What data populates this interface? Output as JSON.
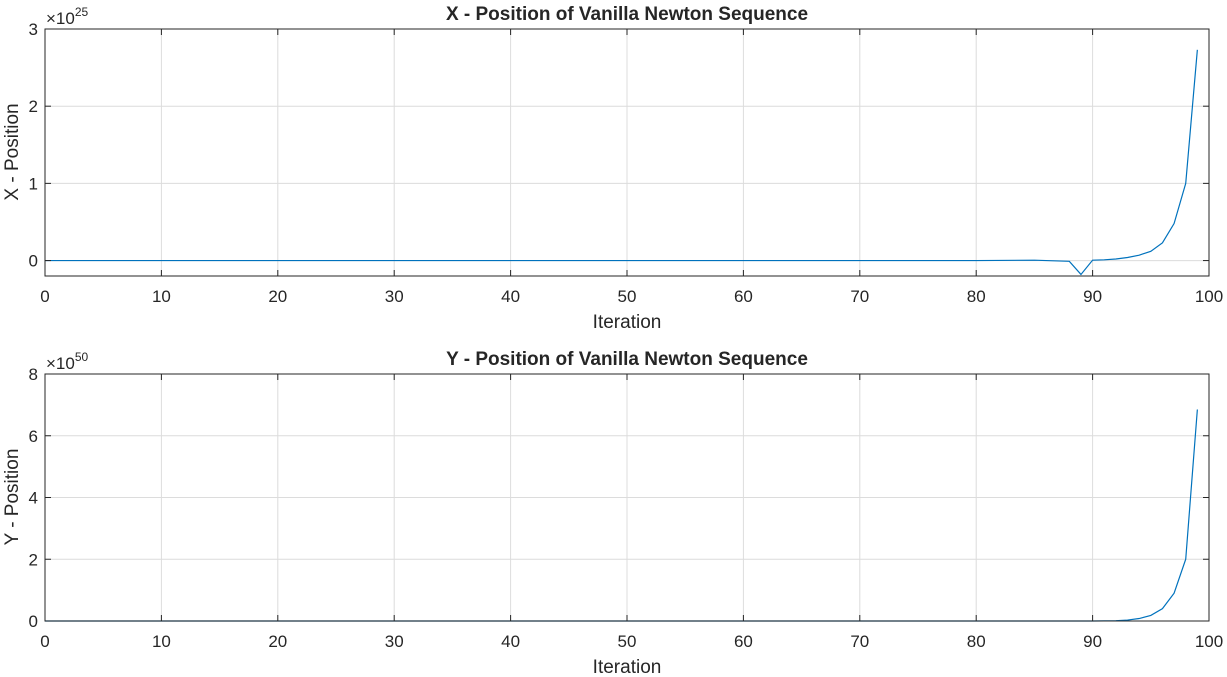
{
  "chart_data": [
    {
      "type": "line",
      "title": "X - Position of Vanilla Newton Sequence",
      "xlabel": "Iteration",
      "ylabel": "X - Position",
      "exponent_base": "×10",
      "exponent_power": "25",
      "xlim": [
        0,
        100
      ],
      "ylim": [
        -0.2,
        3
      ],
      "xticks": [
        0,
        10,
        20,
        30,
        40,
        50,
        60,
        70,
        80,
        90,
        100
      ],
      "yticks": [
        0,
        1,
        2,
        3
      ],
      "grid": true,
      "line_color": "#0072BD",
      "series": [
        {
          "x": [
            0,
            10,
            20,
            30,
            40,
            50,
            60,
            70,
            80,
            85,
            88,
            89,
            90,
            91,
            92,
            93,
            94,
            95,
            96,
            97,
            98,
            99
          ],
          "y": [
            0,
            0,
            0,
            0,
            0,
            0,
            0,
            0,
            0,
            0.005,
            -0.01,
            -0.18,
            0.005,
            0.01,
            0.02,
            0.04,
            0.07,
            0.12,
            0.23,
            0.48,
            1.0,
            2.73
          ]
        }
      ]
    },
    {
      "type": "line",
      "title": "Y - Position of Vanilla Newton Sequence",
      "xlabel": "Iteration",
      "ylabel": "Y - Position",
      "exponent_base": "×10",
      "exponent_power": "50",
      "xlim": [
        0,
        100
      ],
      "ylim": [
        0,
        8
      ],
      "xticks": [
        0,
        10,
        20,
        30,
        40,
        50,
        60,
        70,
        80,
        90,
        100
      ],
      "yticks": [
        0,
        2,
        4,
        6,
        8
      ],
      "grid": true,
      "line_color": "#0072BD",
      "series": [
        {
          "x": [
            0,
            10,
            20,
            30,
            40,
            50,
            60,
            70,
            80,
            88,
            90,
            91,
            92,
            93,
            94,
            95,
            96,
            97,
            98,
            99
          ],
          "y": [
            0,
            0,
            0,
            0,
            0,
            0,
            0,
            0,
            0,
            0,
            0,
            0.005,
            0.01,
            0.03,
            0.08,
            0.18,
            0.4,
            0.9,
            2.0,
            6.85
          ]
        }
      ]
    }
  ]
}
